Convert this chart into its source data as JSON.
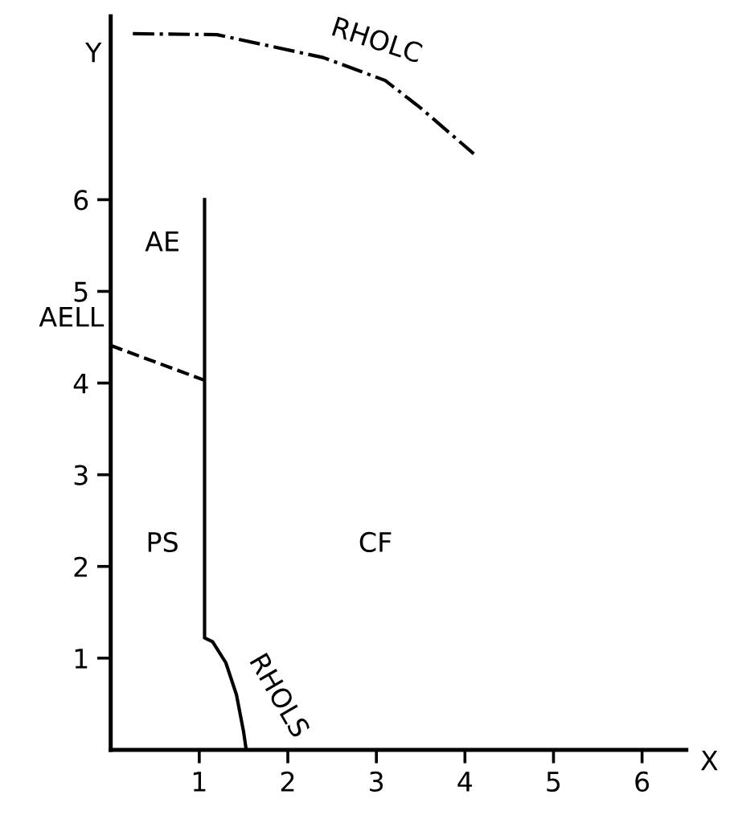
{
  "chart_data": {
    "type": "line",
    "xlabel": "X",
    "ylabel": "Y",
    "xlim": [
      0,
      6.5
    ],
    "ylim": [
      0,
      8
    ],
    "xticks": [
      1,
      2,
      3,
      4,
      5,
      6
    ],
    "yticks": [
      1,
      2,
      3,
      4,
      5,
      6
    ],
    "grid": false,
    "legend": false,
    "marker": "none",
    "series": [
      {
        "color": "#000000",
        "line_style": "solid",
        "x": [
          1.06,
          1.06,
          1.15,
          1.3,
          1.42,
          1.5,
          1.53
        ],
        "values": [
          6.0,
          1.22,
          1.18,
          0.95,
          0.6,
          0.2,
          0
        ]
      },
      {
        "color": "#000000",
        "line_style": "dashed",
        "x": [
          0,
          1.06
        ],
        "values": [
          4.41,
          4.03
        ]
      },
      {
        "color": "#000000",
        "line_style": "dashdot",
        "x": [
          0.25,
          1.2,
          2.4,
          3.1,
          3.5,
          4.1
        ],
        "values": [
          7.81,
          7.8,
          7.55,
          7.3,
          7.0,
          6.5
        ]
      }
    ],
    "annotations": [
      "AE",
      "PS",
      "CF",
      {
        "text": "AELL",
        "x": 0,
        "y": 4.41
      },
      {
        "text": "RHOLC",
        "x": 2.4,
        "y": 7.55
      },
      {
        "text": "RHOLS",
        "x": 1.35,
        "y": 0.85
      }
    ]
  }
}
